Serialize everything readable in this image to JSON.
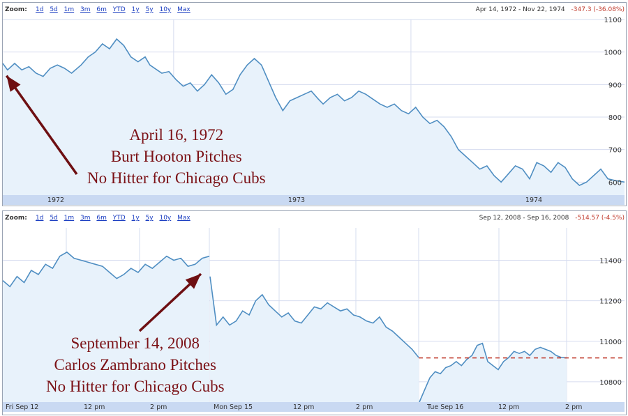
{
  "chart_data": [
    {
      "type": "area",
      "toolbar": {
        "zoom_label": "Zoom:",
        "zoom_options": [
          "1d",
          "5d",
          "1m",
          "3m",
          "6m",
          "YTD",
          "1y",
          "5y",
          "10y",
          "Max"
        ],
        "date_range": "Apr 14, 1972  -  Nov 22, 1974",
        "change": "-347.3 (-36.08%)"
      },
      "ylim": [
        560,
        1100
      ],
      "yticks": [
        "1100",
        "1000",
        "900",
        "800",
        "700",
        "600"
      ],
      "xlim": [
        1972.28,
        1974.9
      ],
      "xticks": [
        "1972",
        "1973",
        "1974"
      ],
      "annotation": [
        "April 16, 1972",
        "Burt Hooton Pitches",
        "No Hitter for Chicago Cubs"
      ],
      "annotation_target": {
        "x": 1972.29,
        "y": 940
      },
      "series": [
        {
          "x": [
            1972.28,
            1972.3,
            1972.33,
            1972.36,
            1972.39,
            1972.42,
            1972.45,
            1972.48,
            1972.51,
            1972.54,
            1972.57,
            1972.61,
            1972.64,
            1972.67,
            1972.7,
            1972.73,
            1972.76,
            1972.79,
            1972.82,
            1972.85,
            1972.88,
            1972.9,
            1972.93,
            1972.95,
            1972.98,
            1973.01,
            1973.04,
            1973.07,
            1973.1,
            1973.13,
            1973.16,
            1973.19,
            1973.22,
            1973.25,
            1973.28,
            1973.31,
            1973.34,
            1973.37,
            1973.4,
            1973.43,
            1973.46,
            1973.49,
            1973.52,
            1973.55,
            1973.58,
            1973.61,
            1973.63,
            1973.66,
            1973.69,
            1973.72,
            1973.75,
            1973.78,
            1973.81,
            1973.84,
            1973.87,
            1973.9,
            1973.93,
            1973.96,
            1973.99,
            1974.02,
            1974.05,
            1974.08,
            1974.11,
            1974.14,
            1974.17,
            1974.2,
            1974.23,
            1974.26,
            1974.29,
            1974.32,
            1974.35,
            1974.38,
            1974.41,
            1974.44,
            1974.47,
            1974.5,
            1974.53,
            1974.56,
            1974.59,
            1974.62,
            1974.65,
            1974.68,
            1974.71,
            1974.74,
            1974.77,
            1974.8,
            1974.83,
            1974.86,
            1974.9
          ],
          "values": [
            965,
            945,
            965,
            945,
            955,
            935,
            925,
            950,
            960,
            950,
            935,
            960,
            985,
            1000,
            1025,
            1010,
            1040,
            1020,
            985,
            970,
            985,
            960,
            945,
            935,
            940,
            915,
            895,
            905,
            880,
            900,
            930,
            905,
            870,
            885,
            930,
            960,
            980,
            960,
            910,
            860,
            820,
            850,
            860,
            870,
            880,
            855,
            840,
            860,
            870,
            850,
            860,
            880,
            870,
            855,
            840,
            830,
            840,
            820,
            810,
            830,
            800,
            780,
            790,
            770,
            740,
            700,
            680,
            660,
            640,
            650,
            620,
            600,
            625,
            650,
            640,
            610,
            660,
            650,
            630,
            660,
            645,
            610,
            590,
            600,
            620,
            640,
            610,
            605,
            600
          ],
          "values_note_removed": true
        }
      ]
    },
    {
      "type": "area",
      "toolbar": {
        "zoom_label": "Zoom:",
        "zoom_options": [
          "1d",
          "5d",
          "1m",
          "3m",
          "6m",
          "YTD",
          "1y",
          "5y",
          "10y",
          "Max"
        ],
        "date_range": "Sep 12, 2008  -  Sep 16, 2008",
        "change": "-514.57 (-4.5%)"
      },
      "ylim": [
        10700,
        11560
      ],
      "yticks": [
        "11400",
        "11200",
        "11000",
        "10800"
      ],
      "xticks": [
        "Fri Sep 12",
        "12 pm",
        "2 pm",
        "Mon Sep 15",
        "12 pm",
        "2 pm",
        "Tue Sep 16",
        "12 pm",
        "2 pm"
      ],
      "reference_value": 10918,
      "annotation": [
        "September 14, 2008",
        "Carlos Zambrano Pitches",
        "No Hitter for Chicago Cubs"
      ],
      "annotation_target": {
        "session": 0,
        "t": 0.98
      },
      "series": [
        {
          "session": "Fri Sep 12",
          "values": [
            11300,
            11270,
            11320,
            11290,
            11350,
            11330,
            11380,
            11360,
            11420,
            11440,
            11410,
            11400,
            11390,
            11380,
            11370,
            11340,
            11310,
            11330,
            11360,
            11340,
            11380,
            11360,
            11390,
            11420,
            11400,
            11410,
            11370,
            11380,
            11410,
            11420
          ]
        },
        {
          "session": "Mon Sep 15",
          "values": [
            11320,
            11080,
            11120,
            11080,
            11100,
            11150,
            11130,
            11200,
            11230,
            11180,
            11150,
            11120,
            11140,
            11100,
            11090,
            11130,
            11170,
            11160,
            11190,
            11170,
            11150,
            11160,
            11130,
            11120,
            11100,
            11090,
            11120,
            11070,
            11050,
            11020,
            10990,
            10960,
            10920
          ]
        },
        {
          "session": "Tue Sep 16",
          "values": [
            10700,
            10760,
            10820,
            10850,
            10840,
            10870,
            10880,
            10900,
            10880,
            10910,
            10930,
            10980,
            10990,
            10900,
            10880,
            10860,
            10900,
            10920,
            10950,
            10940,
            10950,
            10930,
            10960,
            10970,
            10960,
            10950,
            10930,
            10920,
            10918
          ]
        }
      ]
    }
  ]
}
